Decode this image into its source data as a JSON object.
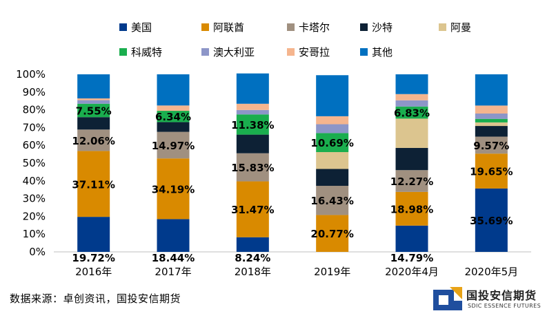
{
  "chart_data": {
    "type": "bar",
    "stacked": true,
    "categories": [
      "2016年",
      "2017年",
      "2018年",
      "2019年",
      "2020年4月",
      "2020年5月"
    ],
    "series": [
      {
        "name": "美国",
        "color": "#003A8C",
        "values": [
          19.72,
          18.44,
          8.24,
          0,
          14.79,
          35.69
        ]
      },
      {
        "name": "阿联酋",
        "color": "#D98A00",
        "values": [
          37.11,
          34.19,
          31.47,
          20.77,
          18.98,
          19.65
        ]
      },
      {
        "name": "卡塔尔",
        "color": "#A09080",
        "values": [
          12.06,
          14.97,
          15.83,
          16.43,
          12.27,
          9.57
        ]
      },
      {
        "name": "沙特",
        "color": "#0D2135",
        "values": [
          7.0,
          5.5,
          10.5,
          9.5,
          12.5,
          6.0
        ]
      },
      {
        "name": "阿曼",
        "color": "#DCC58F",
        "values": [
          0,
          0,
          0,
          9.5,
          16.5,
          2.0
        ]
      },
      {
        "name": "科威特",
        "color": "#1AAE4E",
        "values": [
          7.55,
          6.34,
          11.38,
          10.69,
          6.83,
          2.0
        ]
      },
      {
        "name": "澳大利亚",
        "color": "#8D96C8",
        "values": [
          2.0,
          0,
          2.5,
          5.0,
          3.5,
          3.0
        ]
      },
      {
        "name": "安哥拉",
        "color": "#F5B58E",
        "values": [
          1.0,
          3.0,
          3.5,
          4.5,
          3.5,
          4.5
        ]
      },
      {
        "name": "其他",
        "color": "#0070C0",
        "values": [
          13.56,
          17.56,
          17.08,
          23.12,
          11.13,
          17.59
        ]
      }
    ],
    "data_labels": [
      {
        "category": "2016年",
        "series": "美国",
        "text": "19.72%"
      },
      {
        "category": "2016年",
        "series": "阿联酋",
        "text": "37.11%"
      },
      {
        "category": "2016年",
        "series": "卡塔尔",
        "text": "12.06%"
      },
      {
        "category": "2016年",
        "series": "科威特",
        "text": "7.55%"
      },
      {
        "category": "2017年",
        "series": "美国",
        "text": "18.44%"
      },
      {
        "category": "2017年",
        "series": "阿联酋",
        "text": "34.19%"
      },
      {
        "category": "2017年",
        "series": "卡塔尔",
        "text": "14.97%"
      },
      {
        "category": "2017年",
        "series": "科威特",
        "text": "6.34%"
      },
      {
        "category": "2018年",
        "series": "美国",
        "text": "8.24%"
      },
      {
        "category": "2018年",
        "series": "阿联酋",
        "text": "31.47%"
      },
      {
        "category": "2018年",
        "series": "卡塔尔",
        "text": "15.83%"
      },
      {
        "category": "2018年",
        "series": "科威特",
        "text": "11.38%"
      },
      {
        "category": "2019年",
        "series": "阿联酋",
        "text": "20.77%"
      },
      {
        "category": "2019年",
        "series": "卡塔尔",
        "text": "16.43%"
      },
      {
        "category": "2019年",
        "series": "科威特",
        "text": "10.69%"
      },
      {
        "category": "2020年4月",
        "series": "美国",
        "text": "14.79%"
      },
      {
        "category": "2020年4月",
        "series": "阿联酋",
        "text": "18.98%"
      },
      {
        "category": "2020年4月",
        "series": "卡塔尔",
        "text": "12.27%"
      },
      {
        "category": "2020年4月",
        "series": "科威特",
        "text": "6.83%"
      },
      {
        "category": "2020年5月",
        "series": "美国",
        "text": "35.69%"
      },
      {
        "category": "2020年5月",
        "series": "阿联酋",
        "text": "19.65%"
      },
      {
        "category": "2020年5月",
        "series": "卡塔尔",
        "text": "9.57%"
      }
    ],
    "ylim": [
      0,
      100
    ],
    "yticks": [
      "0%",
      "10%",
      "20%",
      "30%",
      "40%",
      "50%",
      "60%",
      "70%",
      "80%",
      "90%",
      "100%"
    ],
    "legend_position": "top",
    "grid": false
  },
  "source_text": "数据来源：卓创资讯，国投安信期货",
  "logo": {
    "name": "国投安信期货",
    "english": "SDIC ESSENCE FUTURES"
  }
}
